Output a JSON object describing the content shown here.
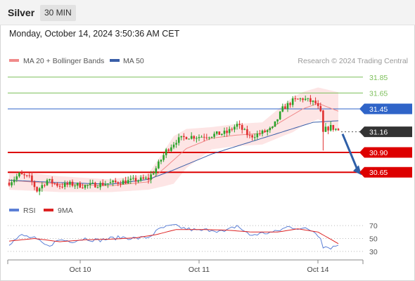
{
  "header": {
    "instrument": "Silver",
    "timeframe": "30 MIN"
  },
  "datetime": "Monday, October 14, 2024 3:50:36 AM CET",
  "legend": {
    "ma20": "MA 20 + Bollinger Bands",
    "ma50": "MA 50"
  },
  "copyright": "Research © 2024 Trading Central",
  "rsi_legend": {
    "rsi": "RSI",
    "ma9": "9MA"
  },
  "colors": {
    "bull": "#29a329",
    "bear": "#e03030",
    "ma20": "#f08a8a",
    "bands": "#fde0e0",
    "ma50": "#3a5ea8",
    "resistance": "#7cbf5a",
    "support": "#dd0000",
    "pivot": "#2f64c8",
    "current": "#333333",
    "arrow": "#2e5fa8",
    "rsi": "#5b7fd6",
    "ma9": "#dd2222",
    "grid": "#dddddd"
  },
  "chart_data": {
    "type": "candlestick",
    "x_labels": [
      "Oct 10",
      "Oct 11",
      "Oct 14"
    ],
    "ylim": [
      30.28,
      31.99
    ],
    "levels": [
      {
        "value": 31.85,
        "label": "31.85",
        "kind": "resistance"
      },
      {
        "value": 31.65,
        "label": "31.65",
        "kind": "resistance"
      },
      {
        "value": 31.45,
        "label": "31.45",
        "kind": "pivot"
      },
      {
        "value": 31.16,
        "label": "31.16",
        "kind": "current"
      },
      {
        "value": 30.9,
        "label": "30.90",
        "kind": "support"
      },
      {
        "value": 30.65,
        "label": "30.65",
        "kind": "support"
      }
    ],
    "forecast_arrow": {
      "from": 31.16,
      "to": 30.65
    },
    "anchors": [
      {
        "i": 0,
        "p": 30.52
      },
      {
        "i": 4,
        "p": 30.62
      },
      {
        "i": 8,
        "p": 30.58
      },
      {
        "i": 11,
        "p": 30.42
      },
      {
        "i": 15,
        "p": 30.55
      },
      {
        "i": 20,
        "p": 30.48
      },
      {
        "i": 24,
        "p": 30.5
      },
      {
        "i": 30,
        "p": 30.48
      },
      {
        "i": 36,
        "p": 30.5
      },
      {
        "i": 42,
        "p": 30.52
      },
      {
        "i": 50,
        "p": 30.55
      },
      {
        "i": 55,
        "p": 30.57
      },
      {
        "i": 58,
        "p": 30.7
      },
      {
        "i": 62,
        "p": 30.92
      },
      {
        "i": 66,
        "p": 31.05
      },
      {
        "i": 70,
        "p": 31.1
      },
      {
        "i": 75,
        "p": 31.1
      },
      {
        "i": 80,
        "p": 31.12
      },
      {
        "i": 86,
        "p": 31.15
      },
      {
        "i": 90,
        "p": 31.25
      },
      {
        "i": 95,
        "p": 31.1
      },
      {
        "i": 100,
        "p": 31.15
      },
      {
        "i": 104,
        "p": 31.2
      },
      {
        "i": 108,
        "p": 31.45
      },
      {
        "i": 112,
        "p": 31.55
      },
      {
        "i": 116,
        "p": 31.58
      },
      {
        "i": 121,
        "p": 31.52
      },
      {
        "i": 123,
        "p": 31.4
      },
      {
        "i": 124,
        "p": 31.18
      },
      {
        "i": 127,
        "p": 31.22
      },
      {
        "i": 130,
        "p": 31.18
      }
    ],
    "ma50": [
      {
        "i": 0,
        "p": 30.55
      },
      {
        "i": 20,
        "p": 30.52
      },
      {
        "i": 40,
        "p": 30.5
      },
      {
        "i": 55,
        "p": 30.56
      },
      {
        "i": 65,
        "p": 30.68
      },
      {
        "i": 80,
        "p": 30.88
      },
      {
        "i": 95,
        "p": 31.03
      },
      {
        "i": 110,
        "p": 31.18
      },
      {
        "i": 120,
        "p": 31.28
      },
      {
        "i": 130,
        "p": 31.3
      }
    ],
    "ma20": [
      {
        "i": 0,
        "p": 30.55
      },
      {
        "i": 20,
        "p": 30.5
      },
      {
        "i": 40,
        "p": 30.48
      },
      {
        "i": 55,
        "p": 30.53
      },
      {
        "i": 62,
        "p": 30.72
      },
      {
        "i": 70,
        "p": 30.95
      },
      {
        "i": 80,
        "p": 31.08
      },
      {
        "i": 90,
        "p": 31.12
      },
      {
        "i": 100,
        "p": 31.14
      },
      {
        "i": 108,
        "p": 31.3
      },
      {
        "i": 116,
        "p": 31.45
      },
      {
        "i": 122,
        "p": 31.52
      },
      {
        "i": 130,
        "p": 31.42
      }
    ],
    "band_halfwidth": [
      {
        "i": 0,
        "w": 0.12
      },
      {
        "i": 40,
        "w": 0.08
      },
      {
        "i": 55,
        "w": 0.1
      },
      {
        "i": 65,
        "w": 0.3
      },
      {
        "i": 80,
        "w": 0.14
      },
      {
        "i": 100,
        "w": 0.14
      },
      {
        "i": 112,
        "w": 0.22
      },
      {
        "i": 122,
        "w": 0.2
      },
      {
        "i": 130,
        "w": 0.24
      }
    ],
    "rsi": {
      "ylim": [
        20,
        80
      ],
      "ticks": [
        70,
        50,
        30
      ],
      "rsi_series": [
        {
          "i": 0,
          "v": 42
        },
        {
          "i": 5,
          "v": 55
        },
        {
          "i": 10,
          "v": 50
        },
        {
          "i": 15,
          "v": 38
        },
        {
          "i": 20,
          "v": 48
        },
        {
          "i": 25,
          "v": 46
        },
        {
          "i": 30,
          "v": 50
        },
        {
          "i": 35,
          "v": 47
        },
        {
          "i": 40,
          "v": 50
        },
        {
          "i": 45,
          "v": 52
        },
        {
          "i": 50,
          "v": 50
        },
        {
          "i": 55,
          "v": 52
        },
        {
          "i": 60,
          "v": 66
        },
        {
          "i": 65,
          "v": 70
        },
        {
          "i": 70,
          "v": 65
        },
        {
          "i": 75,
          "v": 62
        },
        {
          "i": 80,
          "v": 64
        },
        {
          "i": 85,
          "v": 60
        },
        {
          "i": 90,
          "v": 70
        },
        {
          "i": 95,
          "v": 55
        },
        {
          "i": 100,
          "v": 58
        },
        {
          "i": 105,
          "v": 60
        },
        {
          "i": 110,
          "v": 68
        },
        {
          "i": 115,
          "v": 66
        },
        {
          "i": 120,
          "v": 62
        },
        {
          "i": 123,
          "v": 52
        },
        {
          "i": 124,
          "v": 38
        },
        {
          "i": 127,
          "v": 36
        },
        {
          "i": 130,
          "v": 40
        }
      ],
      "ma9_series": [
        {
          "i": 0,
          "v": 46
        },
        {
          "i": 10,
          "v": 50
        },
        {
          "i": 20,
          "v": 45
        },
        {
          "i": 30,
          "v": 48
        },
        {
          "i": 40,
          "v": 49
        },
        {
          "i": 50,
          "v": 51
        },
        {
          "i": 58,
          "v": 56
        },
        {
          "i": 66,
          "v": 64
        },
        {
          "i": 76,
          "v": 64
        },
        {
          "i": 86,
          "v": 63
        },
        {
          "i": 96,
          "v": 60
        },
        {
          "i": 106,
          "v": 60
        },
        {
          "i": 114,
          "v": 65
        },
        {
          "i": 122,
          "v": 60
        },
        {
          "i": 130,
          "v": 42
        }
      ]
    }
  }
}
